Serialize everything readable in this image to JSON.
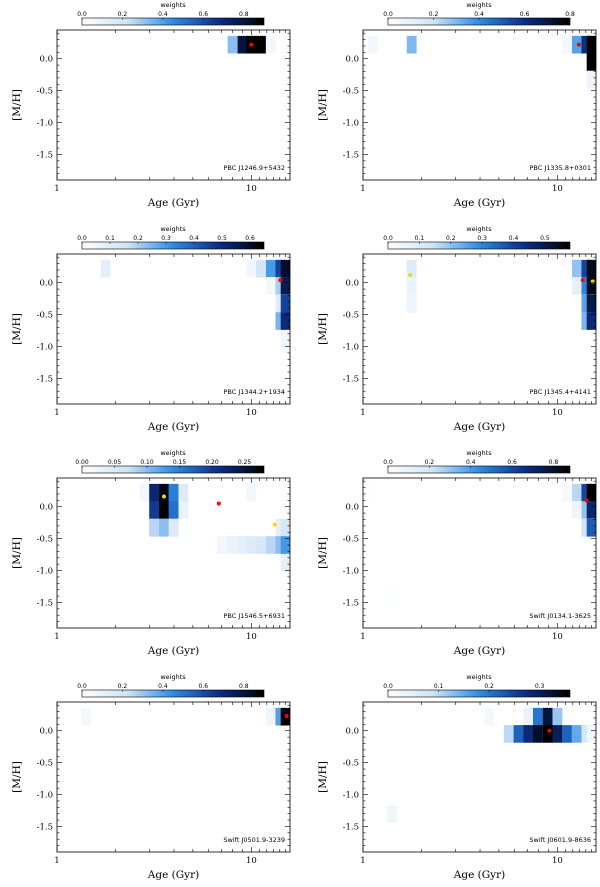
{
  "figure": {
    "xlabel": "Age (Gyr)",
    "ylabel": "[M/H]",
    "colorbar_title": "weights"
  },
  "chart_data": [
    {
      "type": "heatmap",
      "object": "PBC J1246.9+5432",
      "xlabel": "Age (Gyr)",
      "ylabel": "[M/H]",
      "xscale": "log",
      "xlim": [
        1,
        15.8
      ],
      "ylim": [
        -1.9,
        0.45
      ],
      "x_ticklabels": [
        "1",
        "10"
      ],
      "y_ticklabels": [
        "0.0",
        "-0.5",
        "-1.0",
        "-1.5"
      ],
      "colorbar": {
        "title": "weights",
        "vmax": 0.9,
        "ticks": [
          "0.0",
          "0.2",
          "0.4",
          "0.6",
          "0.8"
        ],
        "colors": [
          "#ffffff",
          "#cfe3f7",
          "#2e8be6",
          "#0c2e85",
          "#000000"
        ]
      },
      "cells": [
        {
          "age": 8.0,
          "mh": 0.22,
          "w": 0.32
        },
        {
          "age": 9.0,
          "mh": 0.22,
          "w": 0.8
        },
        {
          "age": 10.0,
          "mh": 0.22,
          "w": 0.92
        },
        {
          "age": 11.2,
          "mh": 0.22,
          "w": 0.92
        },
        {
          "age": 12.6,
          "mh": 0.22,
          "w": 0.06
        }
      ],
      "markers": [
        {
          "age": 10.0,
          "mh": 0.22,
          "color": "#ff0000"
        }
      ]
    },
    {
      "type": "heatmap",
      "object": "PBC J1335.8+0301",
      "xlabel": "Age (Gyr)",
      "ylabel": "[M/H]",
      "xscale": "log",
      "xlim": [
        1,
        15.8
      ],
      "ylim": [
        -1.9,
        0.45
      ],
      "x_ticklabels": [
        "1",
        "10"
      ],
      "y_ticklabels": [
        "0.0",
        "-0.5",
        "-1.0",
        "-1.5"
      ],
      "colorbar": {
        "title": "weights",
        "vmax": 0.8,
        "ticks": [
          "0.0",
          "0.2",
          "0.4",
          "0.6",
          "0.8"
        ],
        "colors": [
          "#ffffff",
          "#cfe3f7",
          "#2e8be6",
          "#0c2e85",
          "#000000"
        ]
      },
      "cells": [
        {
          "age": 1.12,
          "mh": 0.22,
          "w": 0.06
        },
        {
          "age": 1.78,
          "mh": 0.22,
          "w": 0.3
        },
        {
          "age": 11.2,
          "mh": 0.22,
          "w": 0.05
        },
        {
          "age": 12.6,
          "mh": 0.22,
          "w": 0.35
        },
        {
          "age": 14.1,
          "mh": 0.22,
          "w": 0.6
        },
        {
          "age": 15.0,
          "mh": 0.22,
          "w": 0.85
        },
        {
          "age": 15.0,
          "mh": -0.05,
          "w": 0.9
        },
        {
          "age": 15.0,
          "mh": -0.33,
          "w": 0.08
        }
      ],
      "markers": [
        {
          "age": 12.9,
          "mh": 0.22,
          "color": "#ff0000"
        }
      ]
    },
    {
      "type": "heatmap",
      "object": "PBC J1344.2+1934",
      "xlabel": "Age (Gyr)",
      "ylabel": "[M/H]",
      "xscale": "log",
      "xlim": [
        1,
        15.8
      ],
      "ylim": [
        -1.9,
        0.45
      ],
      "x_ticklabels": [
        "1",
        "10"
      ],
      "y_ticklabels": [
        "0.0",
        "-0.5",
        "-1.0",
        "-1.5"
      ],
      "colorbar": {
        "title": "weights",
        "vmax": 0.65,
        "ticks": [
          "0.0",
          "0.1",
          "0.2",
          "0.3",
          "0.4",
          "0.5",
          "0.6"
        ],
        "colors": [
          "#ffffff",
          "#cfe3f7",
          "#2e8be6",
          "#0c2e85",
          "#000000"
        ]
      },
      "cells": [
        {
          "age": 1.0,
          "mh": -0.05,
          "w": 0.02
        },
        {
          "age": 1.78,
          "mh": 0.22,
          "w": 0.09
        },
        {
          "age": 10.0,
          "mh": 0.22,
          "w": 0.05
        },
        {
          "age": 11.2,
          "mh": 0.22,
          "w": 0.15
        },
        {
          "age": 12.6,
          "mh": 0.22,
          "w": 0.3
        },
        {
          "age": 14.1,
          "mh": 0.22,
          "w": 0.45
        },
        {
          "age": 15.0,
          "mh": 0.22,
          "w": 0.6
        },
        {
          "age": 12.6,
          "mh": -0.05,
          "w": 0.04
        },
        {
          "age": 14.1,
          "mh": -0.05,
          "w": 0.2
        },
        {
          "age": 15.0,
          "mh": -0.05,
          "w": 0.55
        },
        {
          "age": 14.1,
          "mh": -0.33,
          "w": 0.1
        },
        {
          "age": 15.0,
          "mh": -0.33,
          "w": 0.45
        },
        {
          "age": 14.1,
          "mh": -0.6,
          "w": 0.25
        },
        {
          "age": 15.0,
          "mh": -0.6,
          "w": 0.5
        },
        {
          "age": 15.0,
          "mh": -0.88,
          "w": 0.05
        }
      ],
      "markers": [
        {
          "age": 14.1,
          "mh": 0.04,
          "color": "#ff0000"
        }
      ]
    },
    {
      "type": "heatmap",
      "object": "PBC J1345.4+4141",
      "xlabel": "Age (Gyr)",
      "ylabel": "[M/H]",
      "xscale": "log",
      "xlim": [
        1,
        15.8
      ],
      "ylim": [
        -1.9,
        0.45
      ],
      "x_ticklabels": [
        "1",
        "10"
      ],
      "y_ticklabels": [
        "0.0",
        "-0.5",
        "-1.0",
        "-1.5"
      ],
      "colorbar": {
        "title": "weights",
        "vmax": 0.58,
        "ticks": [
          "0.0",
          "0.1",
          "0.2",
          "0.3",
          "0.4",
          "0.5"
        ],
        "colors": [
          "#ffffff",
          "#cfe3f7",
          "#2e8be6",
          "#0c2e85",
          "#000000"
        ]
      },
      "cells": [
        {
          "age": 1.78,
          "mh": 0.22,
          "w": 0.1
        },
        {
          "age": 1.78,
          "mh": -0.05,
          "w": 0.06
        },
        {
          "age": 1.78,
          "mh": -0.33,
          "w": 0.05
        },
        {
          "age": 12.6,
          "mh": 0.22,
          "w": 0.2
        },
        {
          "age": 14.1,
          "mh": 0.22,
          "w": 0.4
        },
        {
          "age": 15.0,
          "mh": 0.22,
          "w": 0.55
        },
        {
          "age": 12.6,
          "mh": -0.05,
          "w": 0.08
        },
        {
          "age": 14.1,
          "mh": -0.05,
          "w": 0.3
        },
        {
          "age": 15.0,
          "mh": -0.05,
          "w": 0.55
        },
        {
          "age": 14.1,
          "mh": -0.33,
          "w": 0.25
        },
        {
          "age": 15.0,
          "mh": -0.33,
          "w": 0.5
        },
        {
          "age": 14.1,
          "mh": -0.6,
          "w": 0.22
        },
        {
          "age": 15.0,
          "mh": -0.6,
          "w": 0.45
        }
      ],
      "markers": [
        {
          "age": 1.75,
          "mh": 0.12,
          "color": "#ffd400"
        },
        {
          "age": 13.5,
          "mh": 0.04,
          "color": "#ff0000"
        },
        {
          "age": 15.2,
          "mh": 0.02,
          "color": "#ffd400"
        }
      ]
    },
    {
      "type": "heatmap",
      "object": "PBC J1546.5+6931",
      "xlabel": "Age (Gyr)",
      "ylabel": "[M/H]",
      "xscale": "log",
      "xlim": [
        1,
        15.8
      ],
      "ylim": [
        -1.9,
        0.45
      ],
      "x_ticklabels": [
        "1",
        "10"
      ],
      "y_ticklabels": [
        "0.0",
        "-0.5",
        "-1.0",
        "-1.5"
      ],
      "colorbar": {
        "title": "weights",
        "vmax": 0.28,
        "ticks": [
          "0.00",
          "0.05",
          "0.10",
          "0.15",
          "0.20",
          "0.25"
        ],
        "colors": [
          "#ffffff",
          "#cfe3f7",
          "#2e8be6",
          "#0c2e85",
          "#000000"
        ]
      },
      "cells": [
        {
          "age": 2.82,
          "mh": 0.22,
          "w": 0.02
        },
        {
          "age": 3.16,
          "mh": 0.22,
          "w": 0.22
        },
        {
          "age": 3.55,
          "mh": 0.22,
          "w": 0.27
        },
        {
          "age": 3.98,
          "mh": 0.22,
          "w": 0.15
        },
        {
          "age": 4.47,
          "mh": 0.22,
          "w": 0.05
        },
        {
          "age": 3.16,
          "mh": -0.05,
          "w": 0.2
        },
        {
          "age": 3.55,
          "mh": -0.05,
          "w": 0.28
        },
        {
          "age": 3.98,
          "mh": -0.05,
          "w": 0.16
        },
        {
          "age": 4.47,
          "mh": -0.05,
          "w": 0.03
        },
        {
          "age": 10.0,
          "mh": 0.22,
          "w": 0.02
        },
        {
          "age": 3.16,
          "mh": -0.33,
          "w": 0.08
        },
        {
          "age": 3.55,
          "mh": -0.33,
          "w": 0.1
        },
        {
          "age": 3.98,
          "mh": -0.33,
          "w": 0.05
        },
        {
          "age": 14.1,
          "mh": -0.33,
          "w": 0.04
        },
        {
          "age": 15.0,
          "mh": -0.33,
          "w": 0.06
        },
        {
          "age": 7.08,
          "mh": -0.6,
          "w": 0.02
        },
        {
          "age": 7.94,
          "mh": -0.6,
          "w": 0.03
        },
        {
          "age": 8.91,
          "mh": -0.6,
          "w": 0.04
        },
        {
          "age": 10.0,
          "mh": -0.6,
          "w": 0.05
        },
        {
          "age": 11.2,
          "mh": -0.6,
          "w": 0.06
        },
        {
          "age": 12.6,
          "mh": -0.6,
          "w": 0.08
        },
        {
          "age": 14.1,
          "mh": -0.6,
          "w": 0.1
        },
        {
          "age": 15.0,
          "mh": -0.6,
          "w": 0.13
        },
        {
          "age": 15.0,
          "mh": -0.88,
          "w": 0.04
        }
      ],
      "markers": [
        {
          "age": 3.55,
          "mh": 0.16,
          "color": "#ffd400"
        },
        {
          "age": 6.8,
          "mh": 0.05,
          "color": "#ff0000"
        },
        {
          "age": 13.2,
          "mh": -0.28,
          "color": "#ffd400"
        }
      ]
    },
    {
      "type": "heatmap",
      "object": "Swift J0134.1-3625",
      "xlabel": "Age (Gyr)",
      "ylabel": "[M/H]",
      "xscale": "log",
      "xlim": [
        1,
        15.8
      ],
      "ylim": [
        -1.9,
        0.45
      ],
      "x_ticklabels": [
        "1",
        "10"
      ],
      "y_ticklabels": [
        "0.0",
        "-0.5",
        "-1.0",
        "-1.5"
      ],
      "colorbar": {
        "title": "weights",
        "vmax": 0.88,
        "ticks": [
          "0.0",
          "0.2",
          "0.4",
          "0.6",
          "0.8"
        ],
        "colors": [
          "#ffffff",
          "#cfe3f7",
          "#2e8be6",
          "#0c2e85",
          "#000000"
        ]
      },
      "cells": [
        {
          "age": 1.12,
          "mh": 0.22,
          "w": 0.01
        },
        {
          "age": 11.2,
          "mh": 0.22,
          "w": 0.05
        },
        {
          "age": 12.6,
          "mh": 0.22,
          "w": 0.25
        },
        {
          "age": 14.1,
          "mh": 0.22,
          "w": 0.6
        },
        {
          "age": 15.0,
          "mh": 0.22,
          "w": 0.88
        },
        {
          "age": 12.6,
          "mh": -0.05,
          "w": 0.08
        },
        {
          "age": 14.1,
          "mh": -0.05,
          "w": 0.3
        },
        {
          "age": 15.0,
          "mh": -0.05,
          "w": 0.7
        },
        {
          "age": 14.1,
          "mh": -0.33,
          "w": 0.2
        },
        {
          "age": 15.0,
          "mh": -0.33,
          "w": 0.55
        },
        {
          "age": 1.41,
          "mh": -1.4,
          "w": 0.01
        }
      ],
      "markers": [
        {
          "age": 14.1,
          "mh": 0.1,
          "color": "#ff0000"
        }
      ]
    },
    {
      "type": "heatmap",
      "object": "Swift J0501.9-3239",
      "xlabel": "Age (Gyr)",
      "ylabel": "[M/H]",
      "xscale": "log",
      "xlim": [
        1,
        15.8
      ],
      "ylim": [
        -1.9,
        0.45
      ],
      "x_ticklabels": [
        "1",
        "10"
      ],
      "y_ticklabels": [
        "0.0",
        "-0.5",
        "-1.0",
        "-1.5"
      ],
      "colorbar": {
        "title": "weights",
        "vmax": 0.9,
        "ticks": [
          "0.0",
          "0.2",
          "0.4",
          "0.6",
          "0.8"
        ],
        "colors": [
          "#ffffff",
          "#cfe3f7",
          "#2e8be6",
          "#0c2e85",
          "#000000"
        ]
      },
      "cells": [
        {
          "age": 1.41,
          "mh": 0.22,
          "w": 0.05
        },
        {
          "age": 12.6,
          "mh": 0.22,
          "w": 0.08
        },
        {
          "age": 14.1,
          "mh": 0.22,
          "w": 0.4
        },
        {
          "age": 15.0,
          "mh": 0.22,
          "w": 0.9
        }
      ],
      "markers": [
        {
          "age": 15.2,
          "mh": 0.23,
          "color": "#ff0000"
        }
      ]
    },
    {
      "type": "heatmap",
      "object": "Swift J0601.9-8636",
      "xlabel": "Age (Gyr)",
      "ylabel": "[M/H]",
      "xscale": "log",
      "xlim": [
        1,
        15.8
      ],
      "ylim": [
        -1.9,
        0.45
      ],
      "x_ticklabels": [
        "1",
        "10"
      ],
      "y_ticklabels": [
        "0.0",
        "-0.5",
        "-1.0",
        "-1.5"
      ],
      "colorbar": {
        "title": "weights",
        "vmax": 0.36,
        "ticks": [
          "0.0",
          "0.1",
          "0.2",
          "0.3"
        ],
        "colors": [
          "#ffffff",
          "#cfe3f7",
          "#2e8be6",
          "#0c2e85",
          "#000000"
        ]
      },
      "cells": [
        {
          "age": 4.47,
          "mh": 0.22,
          "w": 0.02
        },
        {
          "age": 7.08,
          "mh": 0.22,
          "w": 0.04
        },
        {
          "age": 7.94,
          "mh": 0.22,
          "w": 0.2
        },
        {
          "age": 8.91,
          "mh": 0.22,
          "w": 0.32
        },
        {
          "age": 10.0,
          "mh": 0.22,
          "w": 0.12
        },
        {
          "age": 5.62,
          "mh": -0.05,
          "w": 0.1
        },
        {
          "age": 6.31,
          "mh": -0.05,
          "w": 0.22
        },
        {
          "age": 7.08,
          "mh": -0.05,
          "w": 0.28
        },
        {
          "age": 7.94,
          "mh": -0.05,
          "w": 0.33
        },
        {
          "age": 8.91,
          "mh": -0.05,
          "w": 0.36
        },
        {
          "age": 10.0,
          "mh": -0.05,
          "w": 0.3
        },
        {
          "age": 11.2,
          "mh": -0.05,
          "w": 0.22
        },
        {
          "age": 12.6,
          "mh": -0.05,
          "w": 0.15
        },
        {
          "age": 14.1,
          "mh": -0.05,
          "w": 0.08
        },
        {
          "age": 15.0,
          "mh": -0.05,
          "w": 0.03
        },
        {
          "age": 1.41,
          "mh": -1.3,
          "w": 0.03
        }
      ],
      "markers": [
        {
          "age": 9.1,
          "mh": 0.0,
          "color": "#ff0000"
        }
      ]
    }
  ]
}
